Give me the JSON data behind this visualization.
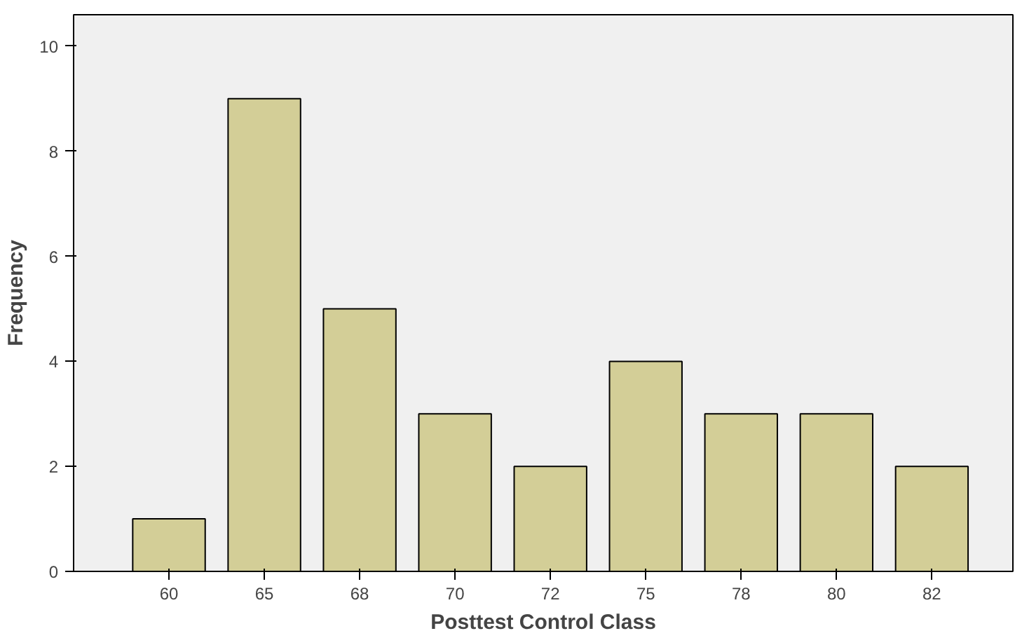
{
  "chart_data": {
    "type": "bar",
    "xlabel": "Posttest Control Class",
    "ylabel": "Frequency",
    "categories": [
      "60",
      "65",
      "68",
      "70",
      "72",
      "75",
      "78",
      "80",
      "82"
    ],
    "values": [
      1,
      9,
      5,
      3,
      2,
      4,
      3,
      3,
      2
    ],
    "color": "#d3ce97",
    "ylim": [
      0,
      10.6
    ],
    "yticks": [
      0,
      2,
      4,
      6,
      8,
      10
    ],
    "grid": false
  }
}
